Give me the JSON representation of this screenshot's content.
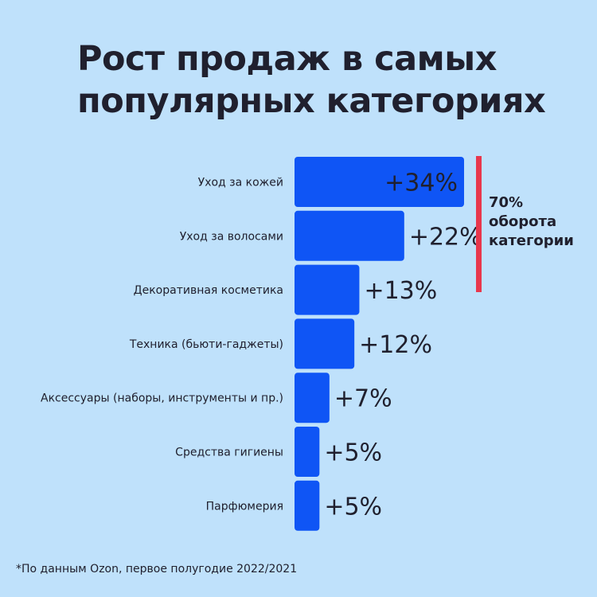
{
  "title_lines": [
    "Рост продаж в самых",
    "популярных категориях"
  ],
  "chart_data": {
    "type": "bar",
    "orientation": "horizontal",
    "categories": [
      "Уход за кожей",
      "Уход за волосами",
      "Декоративная косметика",
      "Техника (бьюти-гаджеты)",
      "Аксессуары (наборы, инструменты и пр.)",
      "Средства гигиены",
      "Парфюмерия"
    ],
    "values": [
      34,
      22,
      13,
      12,
      7,
      5,
      5
    ],
    "value_labels": [
      "+34%",
      "+22%",
      "+13%",
      "+12%",
      "+7%",
      "+5%",
      "+5%"
    ],
    "bar_color": "#0f55f5",
    "grid": false,
    "annotation": {
      "lines": [
        "70%",
        "оборота",
        "категории"
      ],
      "spans_categories": [
        "Уход за кожей",
        "Уход за волосами"
      ],
      "color": "#e8374d"
    }
  },
  "footnote": "*По данным Ozon, первое полугодие 2022/2021"
}
